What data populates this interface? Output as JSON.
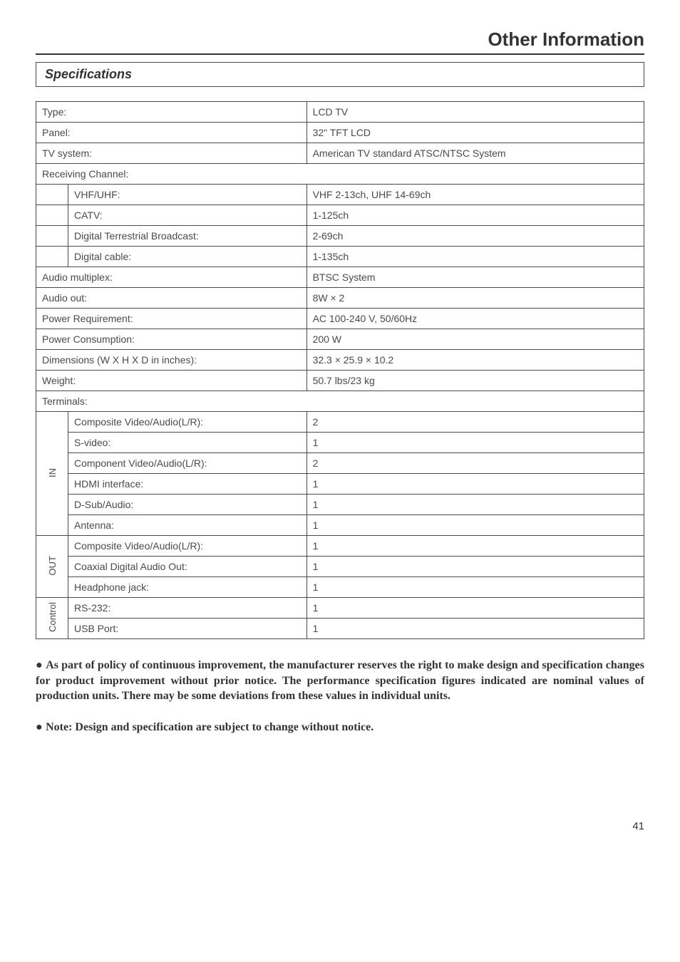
{
  "header": {
    "title": "Other Information"
  },
  "section": {
    "title": "Specifications"
  },
  "spec": {
    "type_label": "Type:",
    "type_value": "LCD TV",
    "panel_label": "Panel:",
    "panel_value": "32\"  TFT LCD",
    "tvsystem_label": "TV system:",
    "tvsystem_value": "American TV standard ATSC/NTSC System",
    "recv_label": "Receiving Channel:",
    "vhf_label": "VHF/UHF:",
    "vhf_value": "VHF 2-13ch, UHF 14-69ch",
    "catv_label": "CATV:",
    "catv_value": "1-125ch",
    "dtb_label": "Digital Terrestrial Broadcast:",
    "dtb_value": "2-69ch",
    "dcable_label": "Digital cable:",
    "dcable_value": "1-135ch",
    "amux_label": "Audio multiplex:",
    "amux_value": "BTSC System",
    "aout_label": "Audio out:",
    "aout_value": "8W × 2",
    "preq_label": "Power Requirement:",
    "preq_value": "AC 100-240 V, 50/60Hz",
    "pcons_label": "Power Consumption:",
    "pcons_value": "200 W",
    "dim_label": "Dimensions (W X H X D in inches):",
    "dim_value": "32.3 × 25.9 × 10.2",
    "weight_label": "Weight:",
    "weight_value": "50.7 lbs/23 kg",
    "term_label": "Terminals:",
    "in_label": "IN",
    "in_comp_label": "Composite Video/Audio(L/R):",
    "in_comp_value": "2",
    "in_svideo_label": "S-video:",
    "in_svideo_value": "1",
    "in_component_label": "Component Video/Audio(L/R):",
    "in_component_value": "2",
    "in_hdmi_label": "HDMI interface:",
    "in_hdmi_value": "1",
    "in_dsub_label": "D-Sub/Audio:",
    "in_dsub_value": "1",
    "in_ant_label": "Antenna:",
    "in_ant_value": "1",
    "out_label": "OUT",
    "out_comp_label": "Composite Video/Audio(L/R):",
    "out_comp_value": "1",
    "out_coax_label": "Coaxial Digital Audio Out:",
    "out_coax_value": "1",
    "out_hp_label": "Headphone jack:",
    "out_hp_value": "1",
    "ctrl_label": "Control",
    "ctrl_rs_label": "RS-232:",
    "ctrl_rs_value": "1",
    "ctrl_usb_label": "USB Port:",
    "ctrl_usb_value": "1"
  },
  "bullets": {
    "b1": "As part of policy of continuous improvement, the manufacturer reserves the right to make design and specification changes for product improvement without prior notice. The performance specification figures indicated are nominal values of production units. There may be some deviations from these values in individual units.",
    "b2": "Note: Design and specification are subject to change without notice."
  },
  "page_number": "41"
}
